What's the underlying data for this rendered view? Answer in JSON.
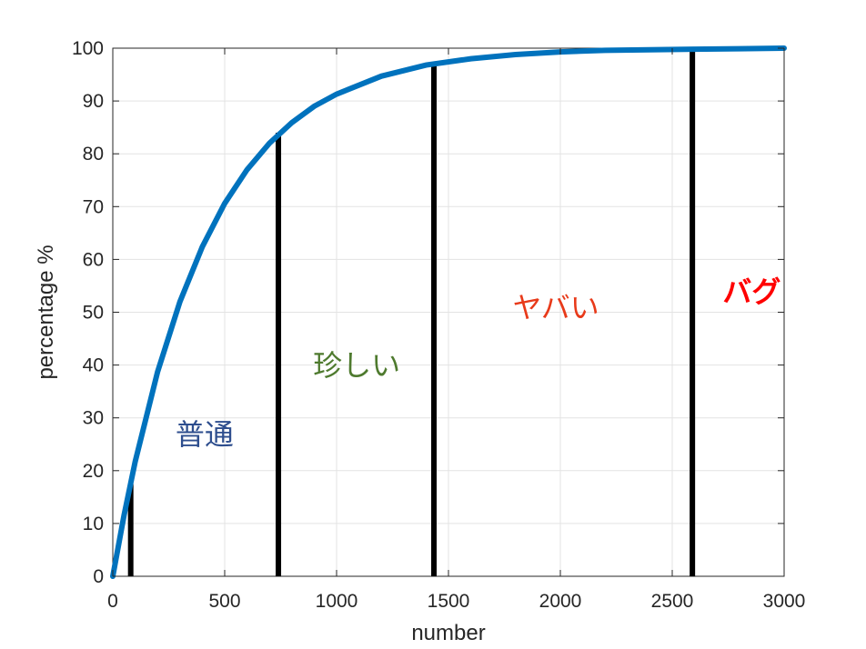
{
  "chart_data": {
    "type": "line",
    "title": "",
    "xlabel": "number",
    "ylabel": "percentage %",
    "xlim": [
      0,
      3000
    ],
    "ylim": [
      0,
      100
    ],
    "xticks": [
      0,
      500,
      1000,
      1500,
      2000,
      2500,
      3000
    ],
    "yticks": [
      0,
      10,
      20,
      30,
      40,
      50,
      60,
      70,
      80,
      90,
      100
    ],
    "grid": true,
    "curve_color": "#0072BD",
    "series": [
      {
        "color": "#0072BD",
        "x": [
          0,
          50,
          100,
          200,
          300,
          400,
          500,
          600,
          700,
          800,
          900,
          1000,
          1200,
          1400,
          1600,
          1800,
          2000,
          2200,
          2400,
          2600,
          2800,
          3000
        ],
        "y": [
          0,
          11.5,
          21.7,
          38.7,
          52.0,
          62.4,
          70.6,
          77.0,
          82.0,
          85.9,
          89.0,
          91.3,
          94.7,
          96.8,
          98.0,
          98.8,
          99.3,
          99.6,
          99.7,
          99.8,
          99.9,
          100
        ]
      }
    ],
    "markers": [
      {
        "x": 80,
        "y": 17.5
      },
      {
        "x": 740,
        "y": 84
      },
      {
        "x": 1435,
        "y": 97.3
      },
      {
        "x": 2590,
        "y": 99.8
      }
    ],
    "annotations": [
      {
        "text": "普通",
        "x": 410,
        "y": 25,
        "color": "#2E4E8E",
        "bold": false
      },
      {
        "text": "珍しい",
        "x": 1090,
        "y": 38,
        "color": "#4E7A2E",
        "bold": false
      },
      {
        "text": "ヤバい",
        "x": 1980,
        "y": 49,
        "color": "#E83A1A",
        "bold": false
      },
      {
        "text": "バグ",
        "x": 2855,
        "y": 52,
        "color": "#FF0000",
        "bold": true
      }
    ]
  }
}
